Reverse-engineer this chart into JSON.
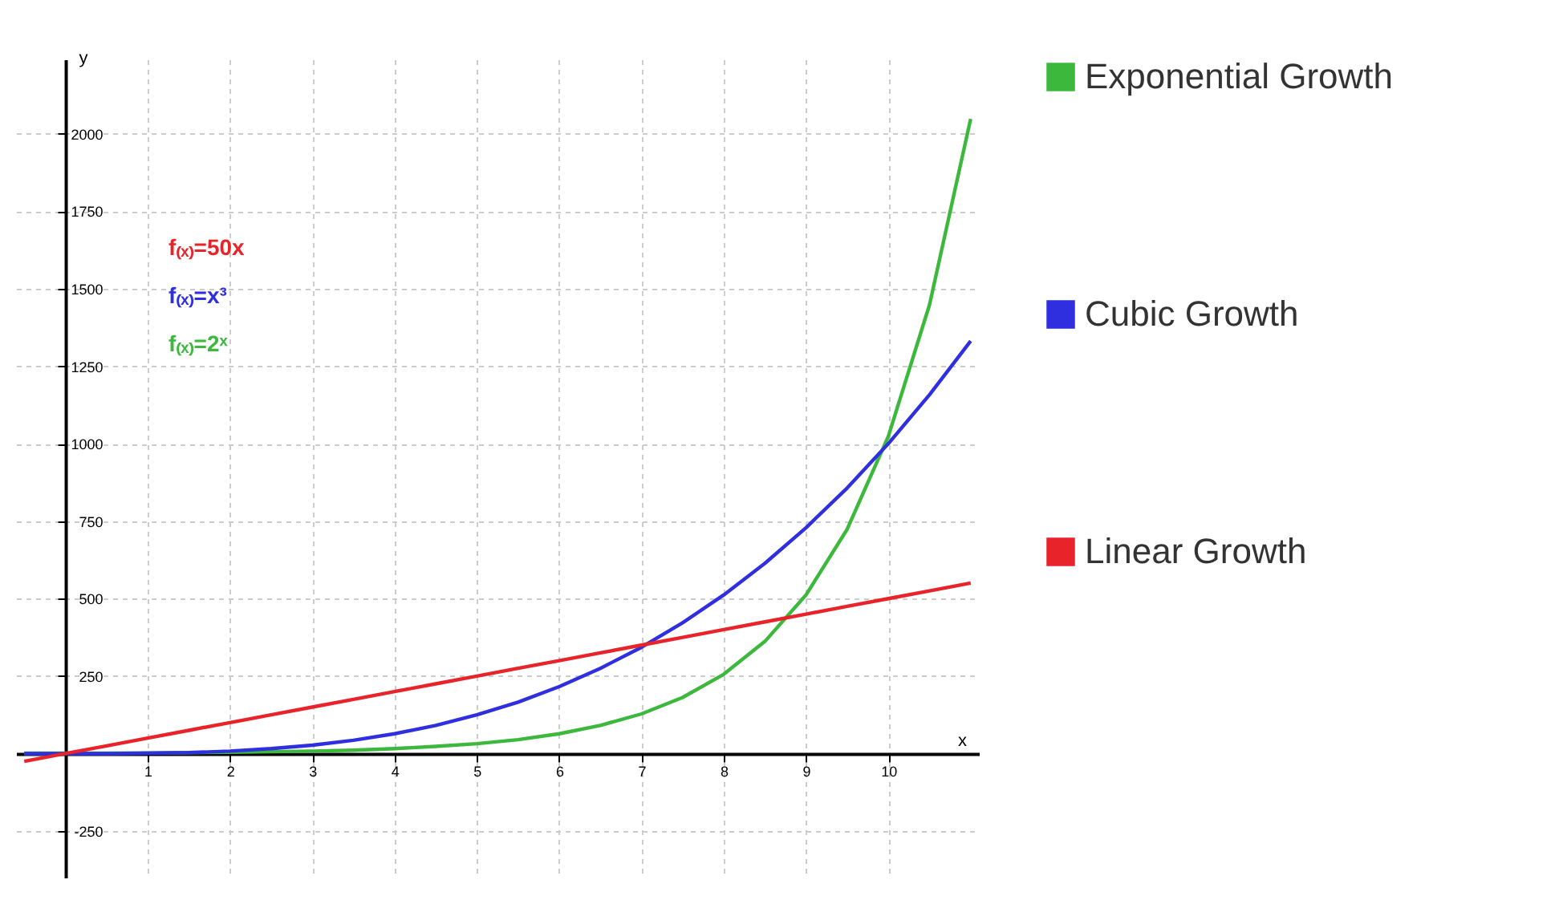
{
  "chart_data": {
    "type": "line",
    "xlabel": "x",
    "ylabel": "y",
    "x": [
      -0.5,
      0,
      0.5,
      1,
      1.5,
      2,
      2.5,
      3,
      3.5,
      4,
      4.5,
      5,
      5.5,
      6,
      6.5,
      7,
      7.5,
      8,
      8.5,
      9,
      9.5,
      10,
      10.5,
      11
    ],
    "series": [
      {
        "name": "Exponential Growth",
        "color": "#3cb83c",
        "values": [
          1,
          1,
          1,
          2,
          3,
          4,
          6,
          8,
          11,
          16,
          23,
          32,
          45,
          64,
          91,
          128,
          181,
          256,
          362,
          512,
          724,
          1024,
          1448,
          2048
        ]
      },
      {
        "name": "Cubic Growth",
        "color": "#2f2fe0",
        "values": [
          0,
          0,
          0,
          1,
          3,
          8,
          16,
          27,
          43,
          64,
          91,
          125,
          166,
          216,
          275,
          343,
          422,
          512,
          614,
          729,
          857,
          1000,
          1158,
          1331
        ]
      },
      {
        "name": "Linear Growth",
        "color": "#e8232a",
        "values": [
          -25,
          0,
          25,
          50,
          75,
          100,
          125,
          150,
          175,
          200,
          225,
          250,
          275,
          300,
          325,
          350,
          375,
          400,
          425,
          450,
          475,
          500,
          525,
          550
        ]
      }
    ],
    "xlim": [
      -0.6,
      11.1
    ],
    "ylim": [
      -400,
      2240
    ],
    "xticks": [
      1,
      2,
      3,
      4,
      5,
      6,
      7,
      8,
      9,
      10
    ],
    "yticks": [
      -250,
      250,
      500,
      750,
      1000,
      1250,
      1500,
      1750,
      2000
    ],
    "annotations": [
      "f₍ₓ₎=50x",
      "f₍ₓ₎=x³",
      "f₍ₓ₎=2ˣ"
    ],
    "grid": true,
    "legend": "right",
    "marker": "none",
    "line_style": "solid"
  }
}
